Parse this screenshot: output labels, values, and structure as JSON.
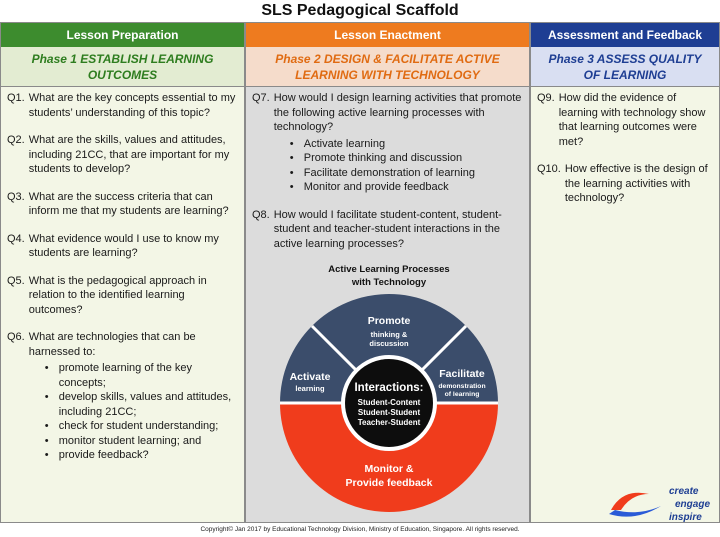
{
  "title": "SLS Pedagogical Scaffold",
  "columns": [
    {
      "header": "Lesson Preparation",
      "phase_line1": "Phase 1  ESTABLISH LEARNING",
      "phase_line2": "OUTCOMES",
      "questions": [
        {
          "num": "Q1.",
          "text": "What are the key concepts essential to my students’ understanding of this topic?"
        },
        {
          "num": "Q2.",
          "text": "What are the skills, values and attitudes, including 21CC, that are important for my students to develop?"
        },
        {
          "num": "Q3.",
          "text": "What are the success criteria that can inform me that my students are learning?"
        },
        {
          "num": "Q4.",
          "text": "What evidence would I use to know my students are learning?"
        },
        {
          "num": "Q5.",
          "text": "What is the pedagogical approach in relation to the identified learning outcomes?"
        },
        {
          "num": "Q6.",
          "text": "What are technologies that can be harnessed to:",
          "bullets": [
            "promote learning of the key concepts;",
            "develop skills, values and attitudes, including 21CC;",
            "check for student understanding;",
            "monitor student learning; and",
            "provide feedback?"
          ]
        }
      ]
    },
    {
      "header": "Lesson Enactment",
      "phase_line1": "Phase 2  DESIGN & FACILITATE ACTIVE",
      "phase_line2": "LEARNING WITH TECHNOLOGY",
      "questions": [
        {
          "num": "Q7.",
          "text": "How would I design learning activities that promote the following active learning processes with technology?",
          "bullets": [
            "Activate learning",
            "Promote thinking and discussion",
            "Facilitate demonstration of learning",
            "Monitor and provide feedback"
          ]
        },
        {
          "num": "Q8.",
          "text": "How would I facilitate student-content, student-student and teacher-student interactions in the active learning processes?"
        }
      ]
    },
    {
      "header": "Assessment and Feedback",
      "phase_line1": "Phase 3  ASSESS QUALITY",
      "phase_line2": "OF LEARNING",
      "questions": [
        {
          "num": "Q9.",
          "text": "How did the evidence of learning with technology show that learning outcomes were met?"
        },
        {
          "num": "Q10.",
          "text": "How effective is  the design of the learning activities with technology?"
        }
      ]
    }
  ],
  "diagram": {
    "title_line1": "Active Learning Processes",
    "title_line2": "with Technology",
    "activate": {
      "title": "Activate",
      "sub": "learning"
    },
    "promote": {
      "title": "Promote",
      "sub1": "thinking &",
      "sub2": "discussion"
    },
    "facilitate": {
      "title": "Facilitate",
      "sub1": "demonstration",
      "sub2": "of learning"
    },
    "monitor": {
      "line1": "Monitor &",
      "line2": "Provide feedback"
    },
    "center": {
      "title": "Interactions:",
      "items": [
        "Student-Content",
        "Student-Student",
        "Teacher-Student"
      ]
    },
    "colors": {
      "navy": "#3b4d6b",
      "red": "#f03c1c",
      "center": "#0d0d0d"
    }
  },
  "logo": {
    "line1": "create",
    "line2": "engage",
    "line3": "inspire"
  },
  "footer": "Copyright© Jan 2017 by Educational Technology Division, Ministry of Education, Singapore. All rights reserved."
}
